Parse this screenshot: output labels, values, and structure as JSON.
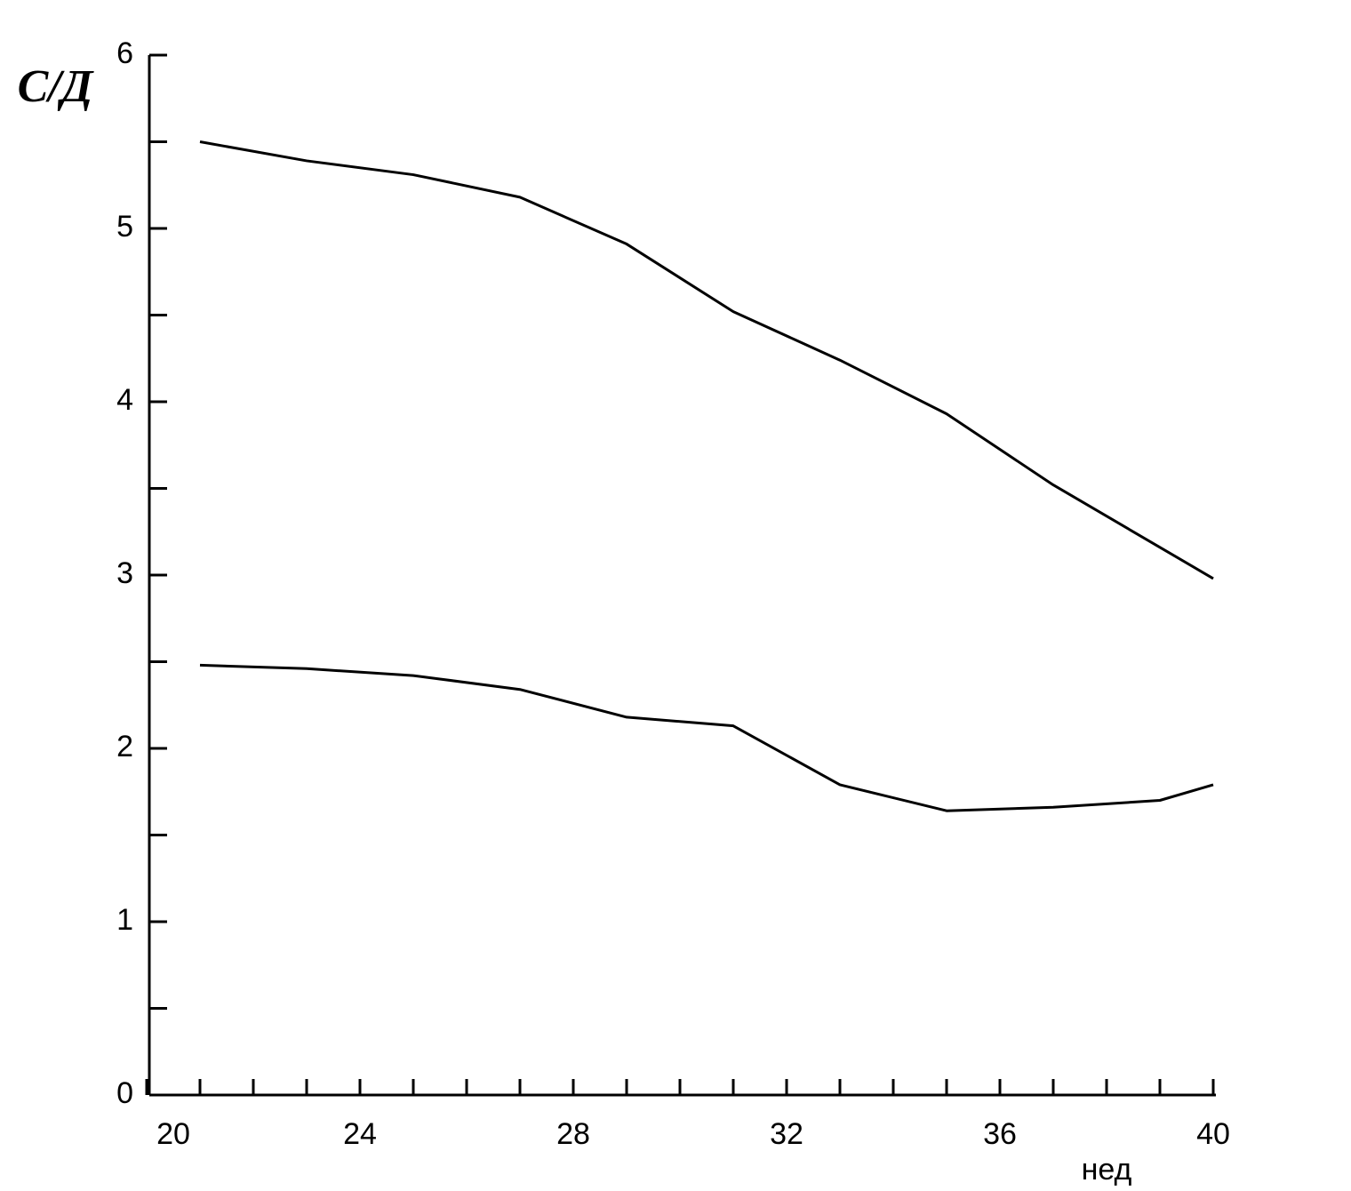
{
  "chart_data": {
    "type": "line",
    "y_label": "С/Д",
    "x_label": "нед",
    "x": [
      21,
      23,
      25,
      27,
      29,
      31,
      33,
      35,
      37,
      39,
      40
    ],
    "series": [
      {
        "color": "#000000",
        "values": [
          5.5,
          5.39,
          5.31,
          5.18,
          4.91,
          4.52,
          4.24,
          3.93,
          3.52,
          3.16,
          2.98
        ]
      },
      {
        "color": "#000000",
        "values": [
          2.48,
          2.46,
          2.42,
          2.34,
          2.18,
          2.13,
          1.79,
          1.64,
          1.66,
          1.7,
          1.79
        ]
      }
    ],
    "xlim": [
      20,
      40
    ],
    "xticks": [
      20,
      24,
      28,
      32,
      36,
      40
    ],
    "xminorticks": [
      21,
      22,
      23,
      24,
      25,
      26,
      27,
      28,
      29,
      30,
      31,
      32,
      33,
      34,
      35,
      36,
      37,
      38,
      39,
      40
    ],
    "ylim": [
      0,
      6
    ],
    "yticks": [
      0,
      1,
      2,
      3,
      4,
      5,
      6
    ],
    "yminorticks": [
      0.5,
      1.5,
      2.5,
      3.5,
      4.5,
      5.5
    ],
    "grid": false
  }
}
